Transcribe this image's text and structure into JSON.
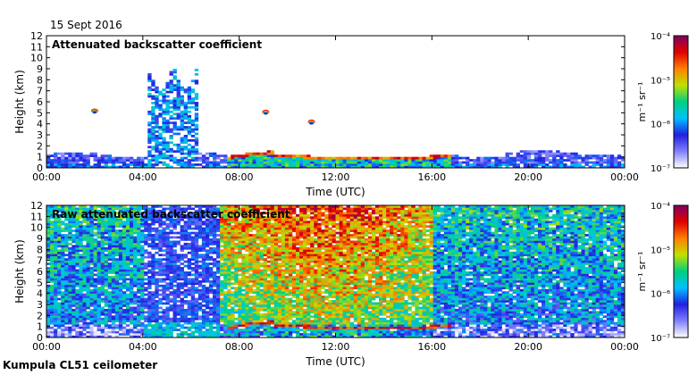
{
  "date": "15 Sept 2016",
  "footer": "Kumpula CL51 ceilometer",
  "chart_data": [
    {
      "type": "heatmap",
      "title": "Attenuated backscatter coefficient",
      "xlabel": "Time (UTC)",
      "ylabel": "Height (km)",
      "x_ticks": [
        "00:00",
        "04:00",
        "08:00",
        "12:00",
        "16:00",
        "20:00",
        "00:00"
      ],
      "x_range_hours": [
        0,
        24
      ],
      "y_ticks": [
        0,
        1,
        2,
        3,
        4,
        5,
        6,
        7,
        8,
        9,
        10,
        11,
        12
      ],
      "ylim": [
        0,
        12
      ],
      "colorbar": {
        "label": "m⁻¹ sr⁻¹",
        "ticks": [
          "10⁻⁴",
          "10⁻⁵",
          "10⁻⁶",
          "10⁻⁷"
        ],
        "range": [
          1e-07,
          0.0001
        ],
        "scale": "log",
        "colors": [
          "#ffffff",
          "#8080ff",
          "#2020e0",
          "#00c0ff",
          "#00d080",
          "#c0e000",
          "#ff8000",
          "#e00000",
          "#800060"
        ]
      },
      "features": [
        {
          "name": "boundary layer",
          "start_h": 0,
          "end_h": 24,
          "top_km": 1.6
        },
        {
          "name": "convective cloud / precipitation",
          "start_h": 4.2,
          "end_h": 6.3,
          "top_km": 9.6
        },
        {
          "name": "cloud base layer",
          "start_h": 7.5,
          "end_h": 16.8,
          "height_km": 0.9
        },
        {
          "name": "aircraft/cloud patch",
          "hour": 9.1,
          "height_km": 5.0
        },
        {
          "name": "aircraft/cloud patch",
          "hour": 11.0,
          "height_km": 4.1
        },
        {
          "name": "aircraft/cloud patch",
          "hour": 2.0,
          "height_km": 5.1
        }
      ]
    },
    {
      "type": "heatmap",
      "title": "Raw attenuated backscatter coefficient",
      "xlabel": "Time (UTC)",
      "ylabel": "Height (km)",
      "x_ticks": [
        "00:00",
        "04:00",
        "08:00",
        "12:00",
        "16:00",
        "20:00",
        "00:00"
      ],
      "x_range_hours": [
        0,
        24
      ],
      "y_ticks": [
        0,
        1,
        2,
        3,
        4,
        5,
        6,
        7,
        8,
        9,
        10,
        11,
        12
      ],
      "ylim": [
        0,
        12
      ],
      "colorbar": {
        "label": "m⁻¹ sr⁻¹",
        "ticks": [
          "10⁻⁴",
          "10⁻⁵",
          "10⁻⁶",
          "10⁻⁷"
        ],
        "range": [
          1e-07,
          0.0001
        ],
        "scale": "log",
        "colors": [
          "#ffffff",
          "#8080ff",
          "#2020e0",
          "#00c0ff",
          "#00d080",
          "#c0e000",
          "#ff8000",
          "#e00000",
          "#800060"
        ]
      },
      "features": [
        {
          "name": "noisy background",
          "start_h": 0,
          "end_h": 24
        },
        {
          "name": "low-noise precipitation period",
          "start_h": 4.0,
          "end_h": 7.2
        },
        {
          "name": "high noise daytime",
          "start_h": 7.2,
          "end_h": 16.0
        },
        {
          "name": "cloud base layer",
          "start_h": 7.5,
          "end_h": 16.8,
          "height_km": 0.9
        }
      ]
    }
  ]
}
